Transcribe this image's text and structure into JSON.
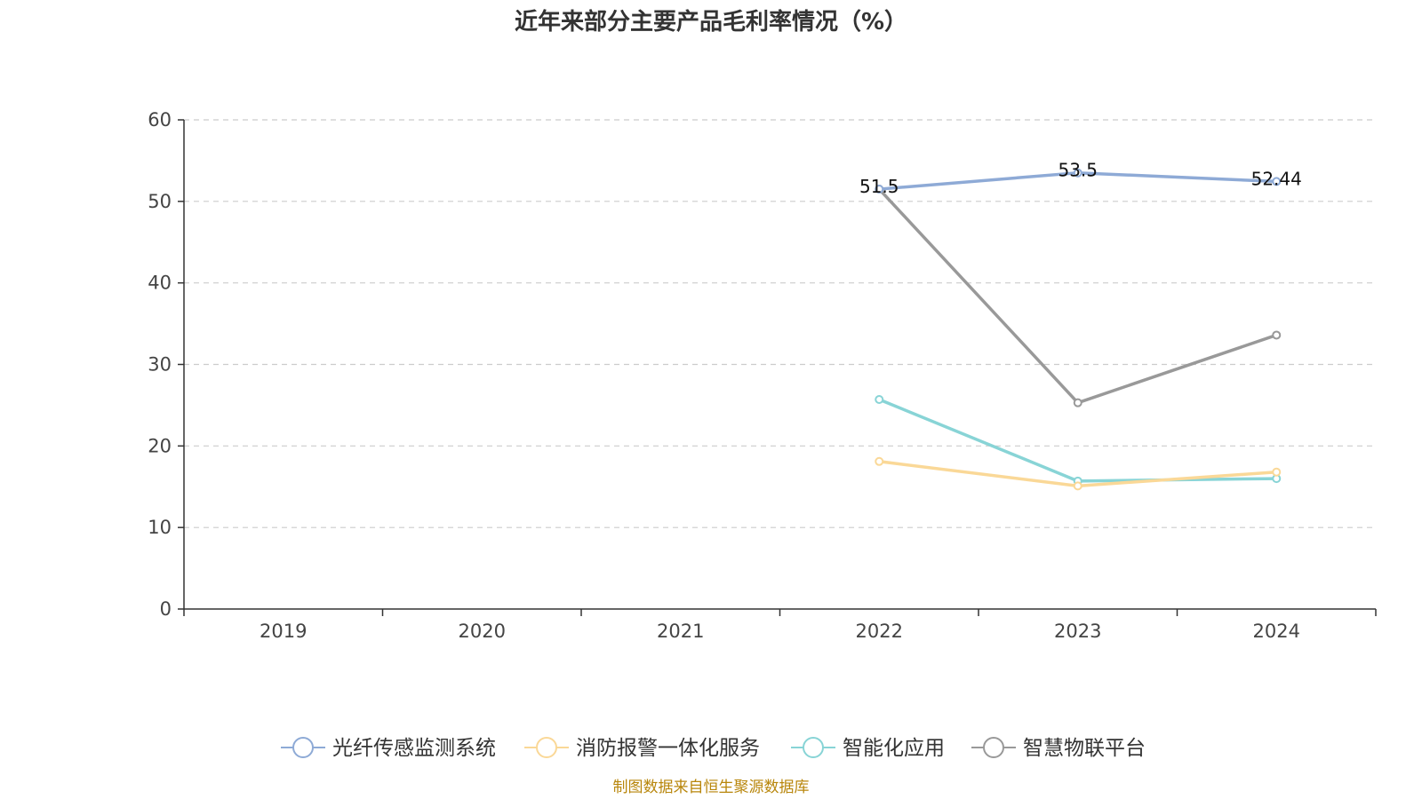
{
  "chart_data": {
    "type": "line",
    "title": "近年来部分主要产品毛利率情况（%）",
    "categories": [
      "2019",
      "2020",
      "2021",
      "2022",
      "2023",
      "2024"
    ],
    "ylim": [
      0,
      60
    ],
    "yticks": [
      0,
      10,
      20,
      30,
      40,
      50,
      60
    ],
    "grid": true,
    "legend_position": "bottom",
    "series": [
      {
        "name": "光纤传感监测系统",
        "color": "#8eaad6",
        "values": [
          null,
          null,
          null,
          51.5,
          53.5,
          52.44
        ],
        "labels": [
          null,
          null,
          null,
          "51.5",
          "53.5",
          "52.44"
        ]
      },
      {
        "name": "消防报警一体化服务",
        "color": "#fad897",
        "values": [
          null,
          null,
          null,
          18.1,
          15.1,
          16.8
        ]
      },
      {
        "name": "智能化应用",
        "color": "#88d4d6",
        "values": [
          null,
          null,
          null,
          25.7,
          15.7,
          16.0
        ]
      },
      {
        "name": "智慧物联平台",
        "color": "#999999",
        "values": [
          null,
          null,
          null,
          51.5,
          25.3,
          33.6
        ]
      }
    ]
  },
  "source": "制图数据来自恒生聚源数据库"
}
